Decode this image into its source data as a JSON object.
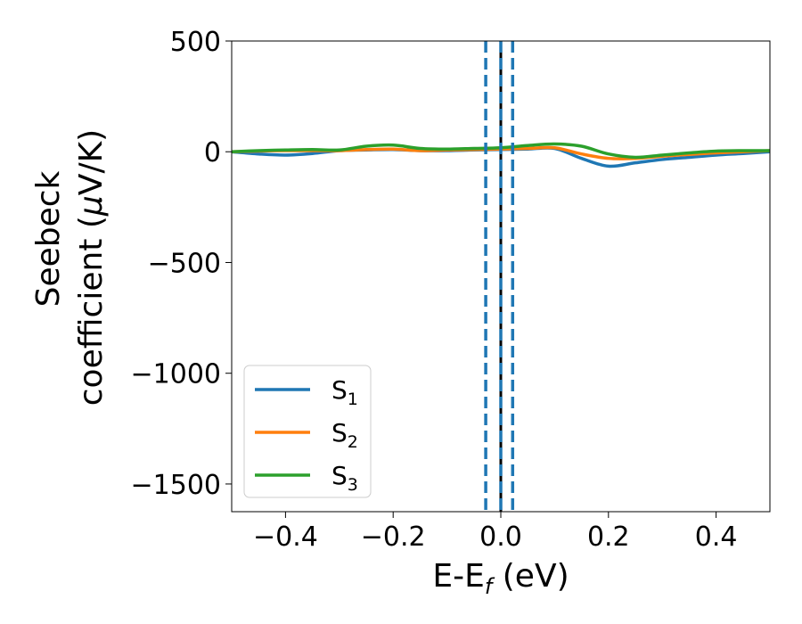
{
  "chart_data": {
    "type": "line",
    "title": "",
    "xlabel": {
      "main": "E-E",
      "sub": "f",
      "unit": " (eV)"
    },
    "ylabel": {
      "line1": "Seebeck",
      "line2_pre": "coefficient  (",
      "mu": "μ",
      "line2_post": "V/K)"
    },
    "xlim": [
      -0.5,
      0.5
    ],
    "ylim": [
      -1625,
      500
    ],
    "xticks": [
      -0.4,
      -0.2,
      0.0,
      0.2,
      0.4
    ],
    "xtick_labels": [
      "−0.4",
      "−0.2",
      "0.0",
      "0.2",
      "0.4"
    ],
    "yticks": [
      500,
      0,
      -500,
      -1000,
      -1500
    ],
    "ytick_labels": [
      "500",
      "0",
      "−500",
      "−1000",
      "−1500"
    ],
    "grid": false,
    "legend_position": "lower-left",
    "x": [
      -0.5,
      -0.45,
      -0.4,
      -0.35,
      -0.3,
      -0.25,
      -0.2,
      -0.15,
      -0.1,
      -0.05,
      0.0,
      0.05,
      0.1,
      0.15,
      0.2,
      0.25,
      0.3,
      0.35,
      0.4,
      0.45,
      0.5
    ],
    "series": [
      {
        "name": "S",
        "sub": "1",
        "color": "#1f77b4",
        "values": [
          0,
          -10,
          -15,
          -8,
          5,
          8,
          10,
          5,
          5,
          8,
          10,
          12,
          15,
          -30,
          -65,
          -50,
          -35,
          -25,
          -15,
          -8,
          0
        ]
      },
      {
        "name": "S",
        "sub": "2",
        "color": "#ff7f0e",
        "values": [
          0,
          3,
          5,
          5,
          5,
          10,
          12,
          5,
          8,
          10,
          12,
          15,
          18,
          -10,
          -30,
          -30,
          -20,
          -12,
          -5,
          0,
          5
        ]
      },
      {
        "name": "S",
        "sub": "3",
        "color": "#2ca02c",
        "values": [
          0,
          5,
          8,
          10,
          8,
          25,
          30,
          15,
          12,
          15,
          18,
          28,
          35,
          25,
          -10,
          -25,
          -15,
          -5,
          3,
          5,
          5
        ]
      }
    ],
    "vlines": [
      {
        "x": -0.028,
        "style": "dashed",
        "color": "#1f77b4"
      },
      {
        "x": 0.0,
        "style": "solid",
        "color": "#000000"
      },
      {
        "x": 0.0,
        "style": "dashed",
        "color": "#1f77b4"
      },
      {
        "x": 0.022,
        "style": "dashed",
        "color": "#1f77b4"
      }
    ]
  }
}
